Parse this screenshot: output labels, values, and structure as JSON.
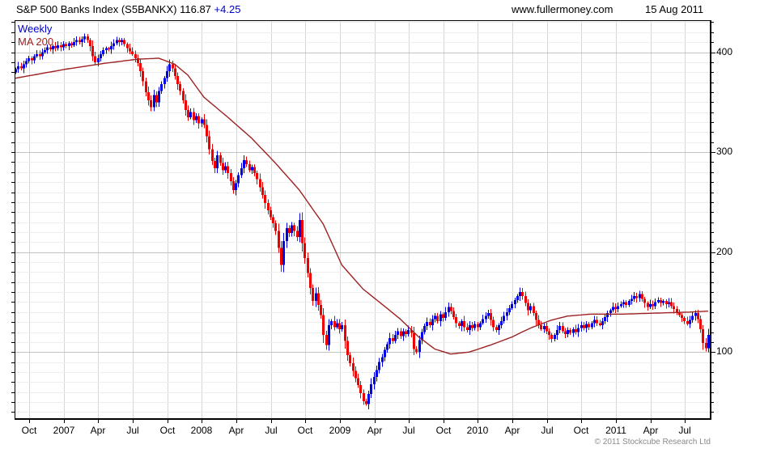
{
  "header": {
    "title": "S&P 500 Banks Index (S5BANKX)",
    "price": "116.87",
    "change": "+4.25",
    "site": "www.fullermoney.com",
    "date": "15 Aug 2011"
  },
  "chart_labels": {
    "frequency": "Weekly",
    "moving_average": "MA 200",
    "copyright": "© 2011 Stockcube Research Ltd"
  },
  "colors": {
    "up_candle": "#0000e8",
    "down_candle": "#ee0000",
    "ma_line": "#9e2121",
    "grid_vertical": "#d6d6d6",
    "grid_major": "#c2c2c2",
    "grid_minor": "#ededed",
    "frame": "#000000",
    "header_change_blue": "#0000cc",
    "copyright_gray": "#8a8a8a"
  },
  "chart_data": {
    "type": "candlestick",
    "title": "S&P 500 Banks Index (S5BANKX)",
    "frequency": "weekly",
    "last_price": 116.87,
    "change": "+4.25",
    "x_start": "Aug 2006",
    "x_end": "Aug 2011",
    "x_axis_labels": [
      "Oct",
      "2007",
      "Apr",
      "Jul",
      "Oct",
      "2008",
      "Apr",
      "Jul",
      "Oct",
      "2009",
      "Apr",
      "Jul",
      "Oct",
      "2010",
      "Apr",
      "Jul",
      "Oct",
      "2011",
      "Apr",
      "Jul"
    ],
    "y_axis_labels": [
      "400",
      "300",
      "200",
      "100"
    ],
    "y_ticks": [
      400,
      300,
      200,
      100
    ],
    "ylim": [
      33,
      432
    ],
    "grid": "both",
    "legend_position": "top-left",
    "weekly_closes": [
      383,
      386,
      384,
      388,
      391,
      394,
      392,
      396,
      398,
      396,
      400,
      402,
      405,
      403,
      406,
      404,
      407,
      405,
      408,
      406,
      409,
      407,
      410,
      412,
      410,
      413,
      416,
      412,
      406,
      396,
      390,
      394,
      398,
      402,
      404,
      403,
      406,
      409,
      412,
      410,
      412,
      408,
      404,
      401,
      398,
      394,
      389,
      381,
      371,
      360,
      352,
      345,
      357,
      350,
      361,
      368,
      374,
      381,
      388,
      384,
      376,
      368,
      361,
      352,
      342,
      335,
      340,
      332,
      336,
      329,
      333,
      327,
      316,
      303,
      291,
      284,
      297,
      289,
      282,
      286,
      279,
      271,
      262,
      269,
      277,
      284,
      292,
      288,
      282,
      285,
      279,
      273,
      265,
      257,
      249,
      242,
      235,
      229,
      221,
      204,
      187,
      211,
      224,
      219,
      227,
      221,
      215,
      232,
      209,
      194,
      179,
      164,
      151,
      159,
      147,
      137,
      117,
      107,
      127,
      131,
      125,
      129,
      123,
      127,
      111,
      97,
      89,
      81,
      74,
      67,
      59,
      51,
      48,
      58,
      68,
      75,
      82,
      90,
      95,
      102,
      108,
      114,
      111,
      117,
      121,
      116,
      121,
      118,
      122,
      119,
      103,
      100,
      112,
      120,
      126,
      130,
      127,
      133,
      136,
      131,
      138,
      134,
      140,
      145,
      141,
      135,
      129,
      126,
      131,
      125,
      122,
      127,
      124,
      128,
      125,
      129,
      133,
      136,
      139,
      132,
      125,
      122,
      127,
      131,
      136,
      140,
      144,
      148,
      152,
      156,
      160,
      156,
      149,
      142,
      146,
      139,
      132,
      127,
      123,
      126,
      121,
      117,
      113,
      117,
      122,
      126,
      121,
      118,
      122,
      119,
      123,
      120,
      124,
      127,
      124,
      128,
      125,
      129,
      132,
      129,
      127,
      131,
      135,
      139,
      142,
      145,
      143,
      146,
      148,
      150,
      147,
      151,
      153,
      156,
      154,
      158,
      153,
      149,
      145,
      148,
      146,
      150,
      152,
      149,
      151,
      148,
      150,
      146,
      143,
      140,
      137,
      134,
      131,
      128,
      132,
      136,
      139,
      133,
      123,
      109,
      104,
      117
    ],
    "ma200_anchors_week_value": [
      [
        0,
        374
      ],
      [
        19,
        383
      ],
      [
        34,
        389
      ],
      [
        46,
        393
      ],
      [
        54,
        394
      ],
      [
        60,
        388
      ],
      [
        65,
        377
      ],
      [
        71,
        355
      ],
      [
        80,
        335
      ],
      [
        89,
        314
      ],
      [
        98,
        289
      ],
      [
        107,
        262
      ],
      [
        116,
        228
      ],
      [
        123,
        187
      ],
      [
        131,
        163
      ],
      [
        139,
        146
      ],
      [
        145,
        133
      ],
      [
        152,
        115
      ],
      [
        158,
        103
      ],
      [
        164,
        98
      ],
      [
        171,
        100
      ],
      [
        179,
        107
      ],
      [
        187,
        115
      ],
      [
        194,
        124
      ],
      [
        202,
        132
      ],
      [
        208,
        136
      ],
      [
        217,
        138
      ],
      [
        229,
        138
      ],
      [
        242,
        139
      ],
      [
        254,
        140
      ],
      [
        261,
        141
      ]
    ]
  }
}
